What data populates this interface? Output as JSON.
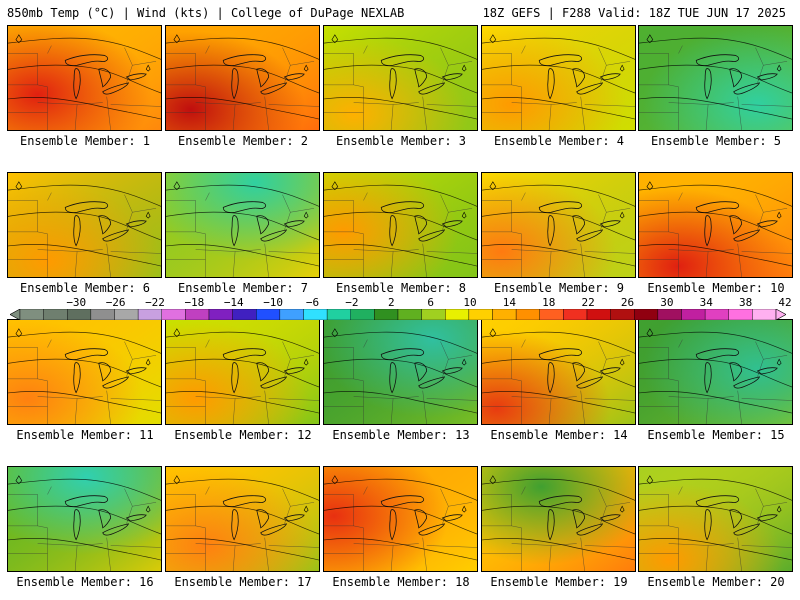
{
  "header": {
    "left": "850mb Temp (°C) | Wind (kts) | College of DuPage NEXLAB",
    "right": "18Z GEFS | F288 Valid: 18Z TUE JUN 17 2025"
  },
  "colorbar": {
    "tick_labels": [
      "−30",
      "−26",
      "−22",
      "−18",
      "−14",
      "−10",
      "−6",
      "−2",
      "2",
      "6",
      "10",
      "14",
      "18",
      "22",
      "26",
      "30",
      "34",
      "38",
      "42"
    ],
    "colors": [
      "#7f8f7f",
      "#6f7f6f",
      "#5f6f5f",
      "#8f8f8f",
      "#a8a8a8",
      "#c8a0e0",
      "#e070e0",
      "#c040c0",
      "#8020c0",
      "#4020c0",
      "#2050ff",
      "#3fa0ff",
      "#30e0ff",
      "#20d0a0",
      "#20b060",
      "#309020",
      "#60b020",
      "#a0d020",
      "#e8f000",
      "#ffd000",
      "#ffb000",
      "#ff9000",
      "#ff6020",
      "#f03020",
      "#d01010",
      "#b01010",
      "#900010",
      "#a01060",
      "#c020a0",
      "#e040c0",
      "#ff70e0",
      "#ffb0f0"
    ]
  },
  "panels": [
    {
      "label": "Ensemble Member: 1"
    },
    {
      "label": "Ensemble Member: 2"
    },
    {
      "label": "Ensemble Member: 3"
    },
    {
      "label": "Ensemble Member: 4"
    },
    {
      "label": "Ensemble Member: 5"
    },
    {
      "label": "Ensemble Member: 6"
    },
    {
      "label": "Ensemble Member: 7"
    },
    {
      "label": "Ensemble Member: 8"
    },
    {
      "label": "Ensemble Member: 9"
    },
    {
      "label": "Ensemble Member: 10"
    },
    {
      "label": "Ensemble Member: 11"
    },
    {
      "label": "Ensemble Member: 12"
    },
    {
      "label": "Ensemble Member: 13"
    },
    {
      "label": "Ensemble Member: 14"
    },
    {
      "label": "Ensemble Member: 15"
    },
    {
      "label": "Ensemble Member: 16"
    },
    {
      "label": "Ensemble Member: 17"
    },
    {
      "label": "Ensemble Member: 18"
    },
    {
      "label": "Ensemble Member: 19"
    },
    {
      "label": "Ensemble Member: 20"
    }
  ]
}
